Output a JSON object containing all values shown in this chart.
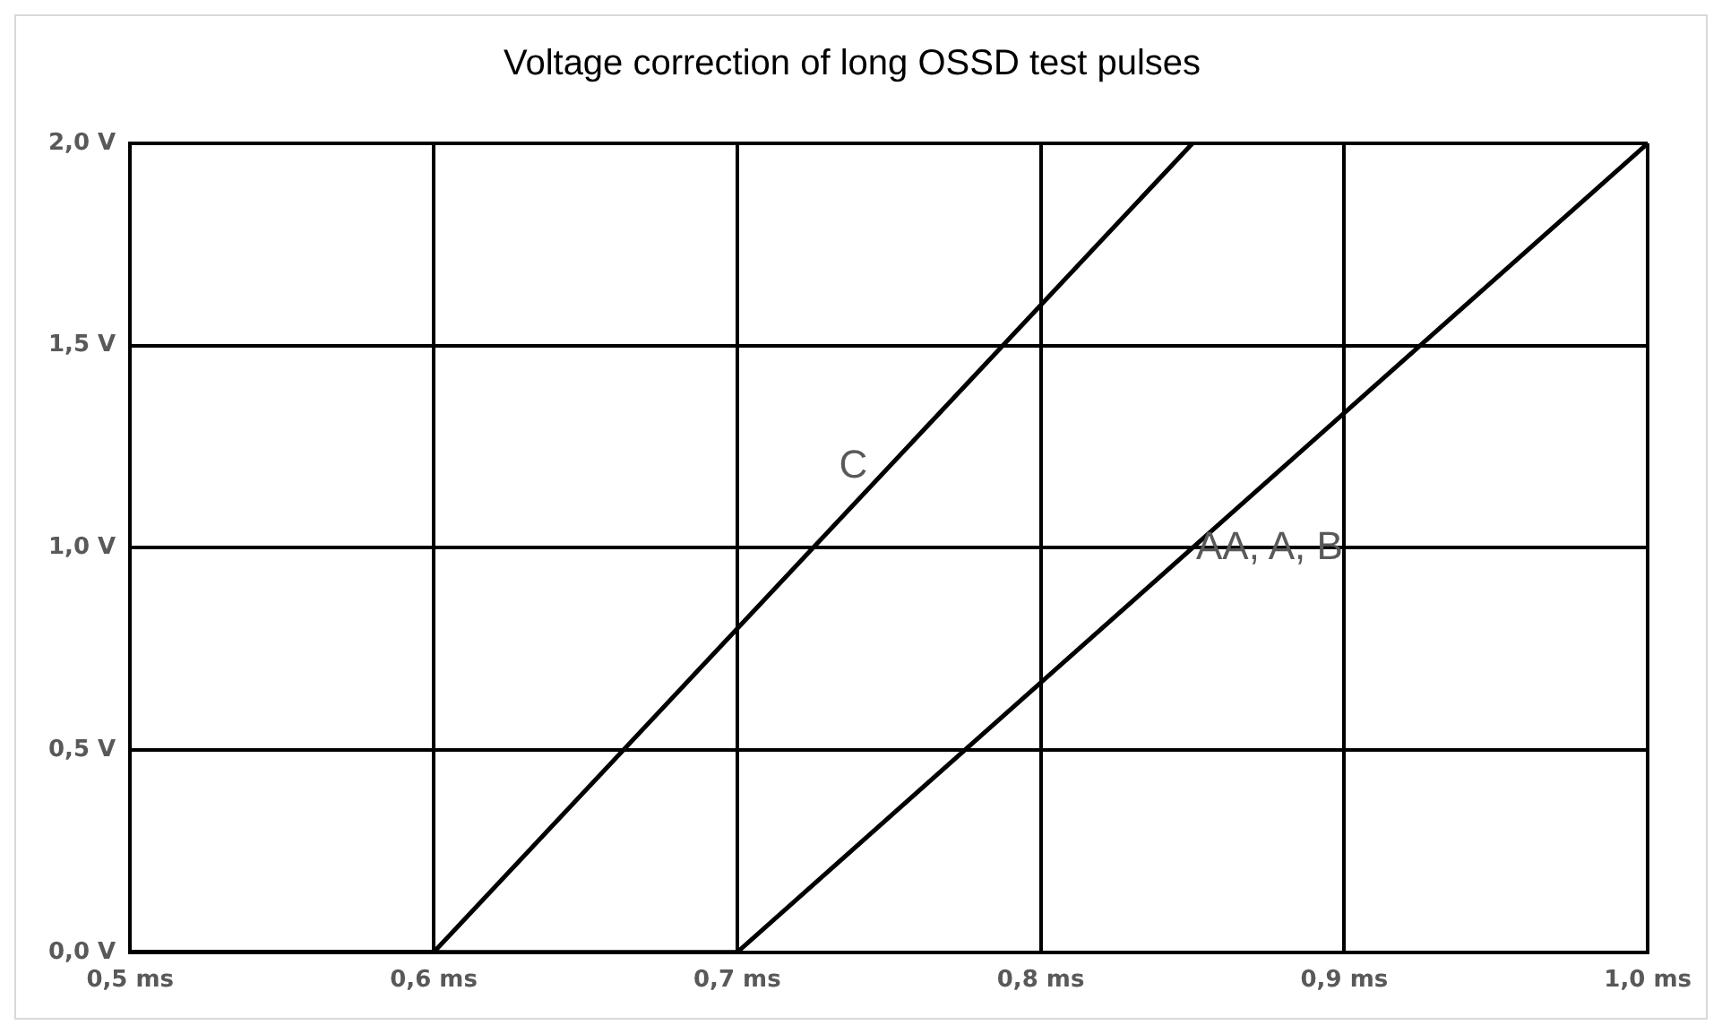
{
  "chart_data": {
    "type": "line",
    "title": "Voltage correction of long OSSD test pulses",
    "series": [
      {
        "color": "#000000",
        "x": [
          0.5,
          0.6,
          0.85
        ],
        "values": [
          0,
          0,
          2
        ]
      },
      {
        "color": "#000000",
        "x": [
          0.5,
          0.7,
          1.0
        ],
        "values": [
          0,
          0,
          2
        ]
      }
    ],
    "xlim": [
      0.5,
      1.0
    ],
    "xticks": [
      {
        "value": 0.5,
        "label": "0,5 ms"
      },
      {
        "value": 0.6,
        "label": "0,6 ms"
      },
      {
        "value": 0.7,
        "label": "0,7 ms"
      },
      {
        "value": 0.8,
        "label": "0,8 ms"
      },
      {
        "value": 0.9,
        "label": "0,9 ms"
      },
      {
        "value": 1.0,
        "label": "1,0 ms"
      }
    ],
    "ylim": [
      0,
      2
    ],
    "yticks": [
      {
        "value": 0,
        "label": "0,0 V"
      },
      {
        "value": 0.5,
        "label": "0,5 V"
      },
      {
        "value": 1.0,
        "label": "1,0 V"
      },
      {
        "value": 1.5,
        "label": "1,5 V"
      },
      {
        "value": 2.0,
        "label": "2,0 V"
      }
    ],
    "grid": true,
    "marker": "none",
    "line_style": "solid",
    "annotations": [
      {
        "text": "C",
        "x": 0.75,
        "y": 1.2
      },
      {
        "text": "AA, A, B",
        "x": 0.85,
        "y": 1.0
      }
    ]
  }
}
